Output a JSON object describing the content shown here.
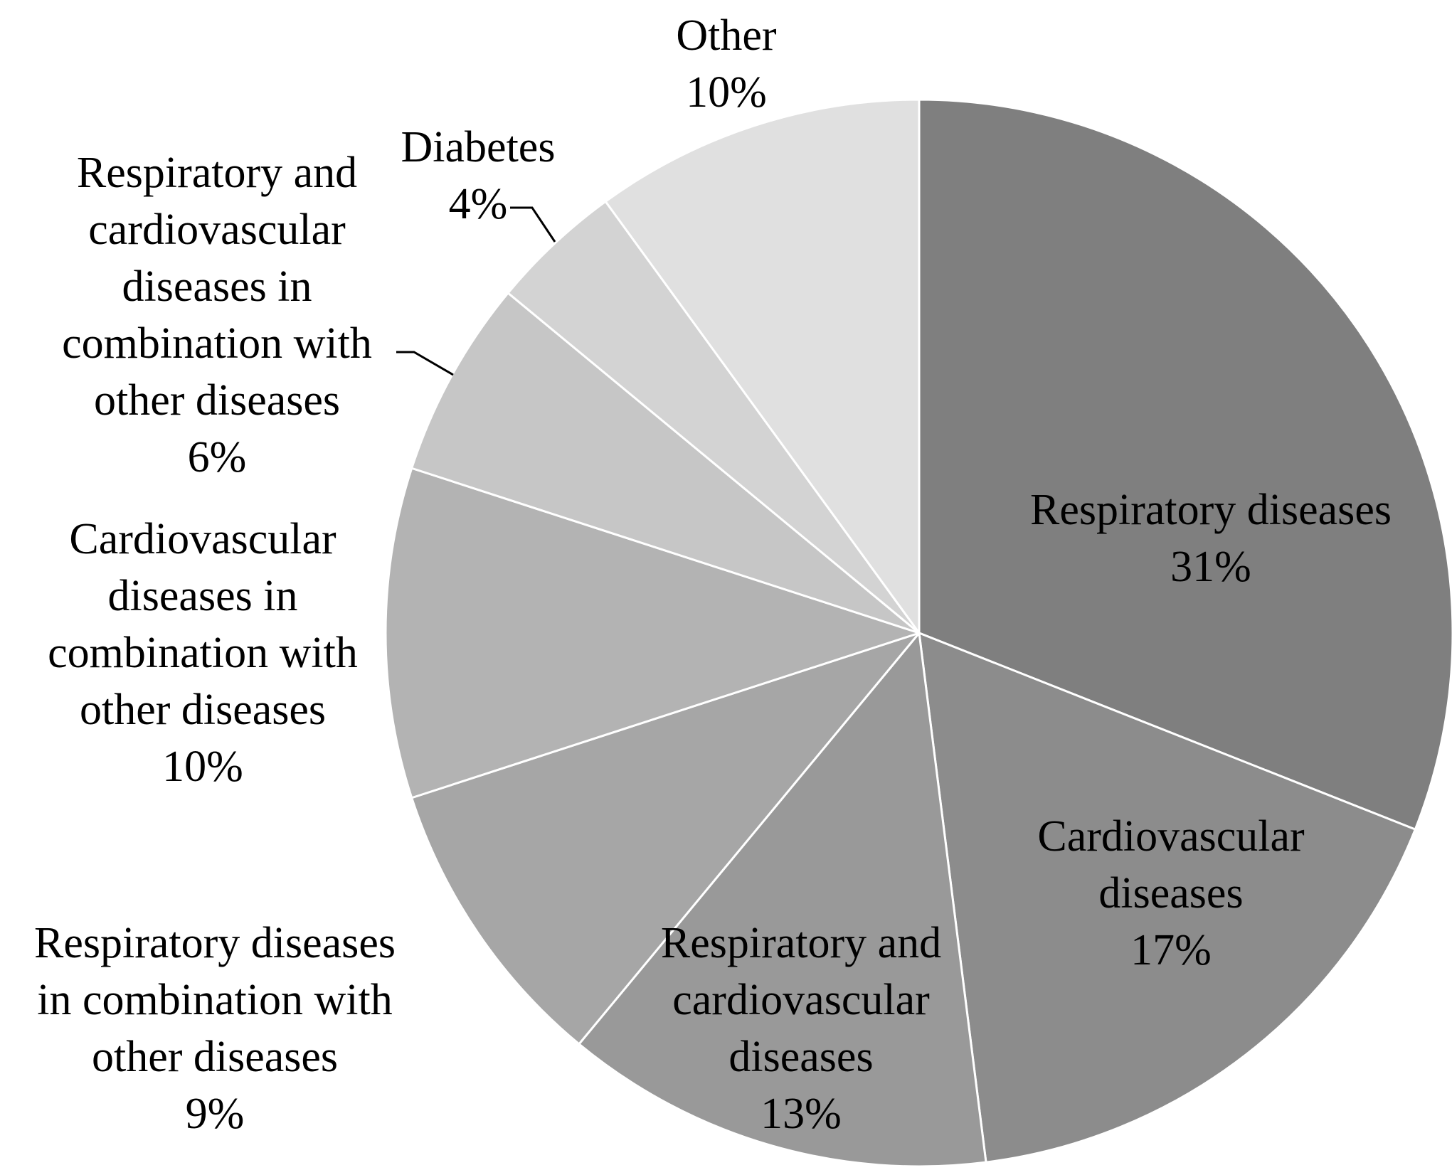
{
  "chart_data": {
    "type": "pie",
    "title": "",
    "start_angle": "12 o'clock",
    "direction": "clockwise",
    "slices": [
      {
        "id": "respiratory",
        "value": 31,
        "color": "#7f7f7f",
        "label_lines": [
          "Respiratory diseases",
          "31%"
        ]
      },
      {
        "id": "cardiovascular",
        "value": 17,
        "color": "#8c8c8c",
        "label_lines": [
          "Cardiovascular",
          "diseases",
          "17%"
        ]
      },
      {
        "id": "resp-cardio",
        "value": 13,
        "color": "#999999",
        "label_lines": [
          "Respiratory and",
          "cardiovascular",
          "diseases",
          "13%"
        ]
      },
      {
        "id": "resp-combo",
        "value": 9,
        "color": "#a6a6a6",
        "label_lines": [
          "Respiratory diseases",
          "in combination with",
          "other diseases",
          "9%"
        ]
      },
      {
        "id": "cardio-combo",
        "value": 10,
        "color": "#b3b3b3",
        "label_lines": [
          "Cardiovascular",
          "diseases in",
          "combination with",
          "other diseases",
          "10%"
        ]
      },
      {
        "id": "resp-cardio-combo",
        "value": 6,
        "color": "#c6c6c6",
        "label_lines": [
          "Respiratory and",
          "cardiovascular",
          "diseases in",
          "combination with",
          "other diseases",
          "6%"
        ]
      },
      {
        "id": "diabetes",
        "value": 4,
        "color": "#d3d3d3",
        "label_lines": [
          "Diabetes",
          "4%"
        ]
      },
      {
        "id": "other",
        "value": 10,
        "color": "#e0e0e0",
        "label_lines": [
          "Other",
          "10%"
        ]
      }
    ]
  }
}
